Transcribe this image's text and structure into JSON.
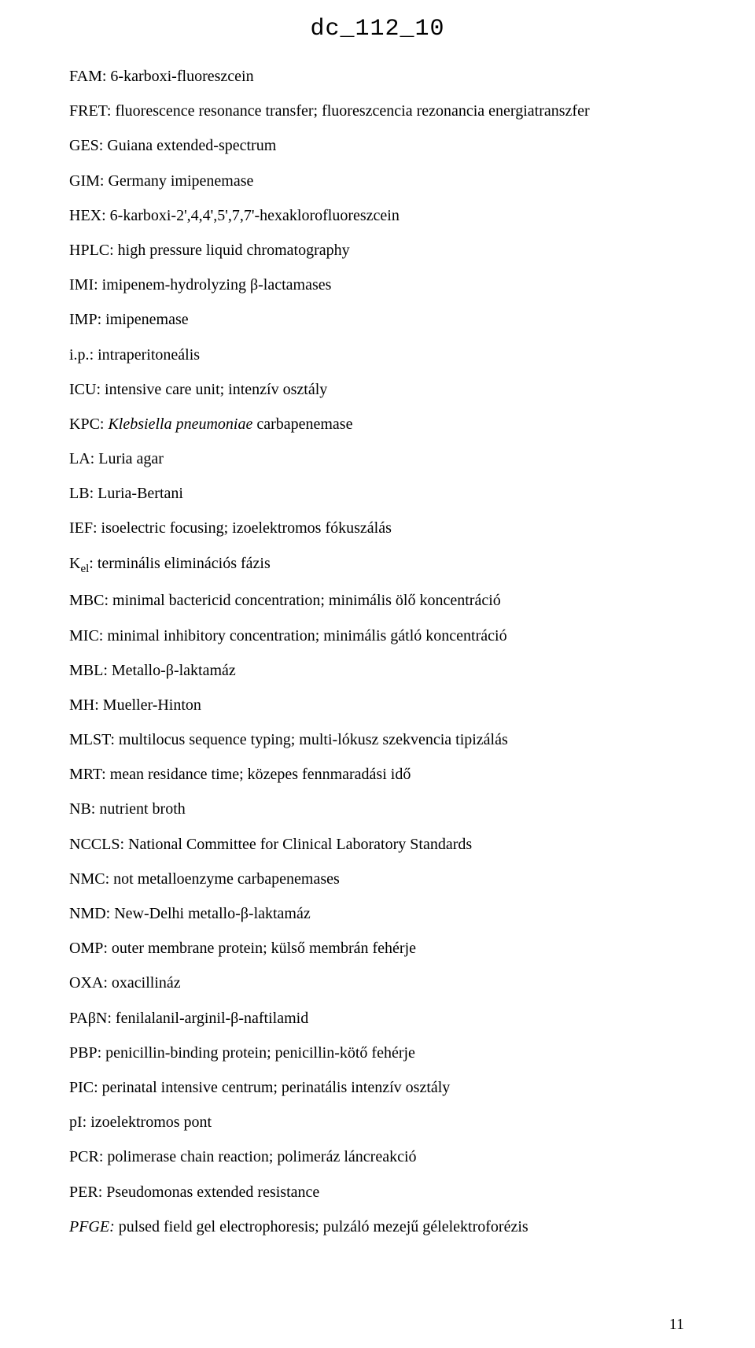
{
  "header": "dc_112_10",
  "page_number": "11",
  "entries": [
    {
      "abbr": "FAM",
      "def": ": 6-karboxi-fluoreszcein"
    },
    {
      "abbr": "FRET",
      "def": ": fluorescence resonance transfer; fluoreszcencia rezonancia energiatranszfer"
    },
    {
      "abbr": "GES",
      "def": ": Guiana extended-spectrum"
    },
    {
      "abbr": "GIM",
      "def": ": Germany imipenemase"
    },
    {
      "abbr": "HEX",
      "def": ": 6-karboxi-2',4,4',5',7,7'-hexaklorofluoreszcein"
    },
    {
      "abbr": "HPLC",
      "def": ": high pressure liquid chromatography"
    },
    {
      "abbr": "IMI",
      "def": ": imipenem-hydrolyzing β-lactamases"
    },
    {
      "abbr": "IMP",
      "def": ": imipenemase"
    },
    {
      "abbr": "i.p.",
      "def": ": intraperitoneális"
    },
    {
      "abbr": "ICU",
      "def": ": intensive care unit; intenzív osztály"
    },
    {
      "abbr": "KPC",
      "pre": ": ",
      "italic": "Klebsiella pneumoniae",
      "post": " carbapenemase"
    },
    {
      "abbr": "LA",
      "def": ": Luria agar"
    },
    {
      "abbr": "LB",
      "def": ": Luria-Bertani"
    },
    {
      "abbr": "IEF",
      "def": ": isoelectric focusing; izoelektromos fókuszálás"
    },
    {
      "abbr_pre": "K",
      "abbr_sub": "el",
      "def": ": terminális eliminációs fázis"
    },
    {
      "abbr": "MBC",
      "def": ": minimal bactericid concentration; minimális ölő koncentráció"
    },
    {
      "abbr": "MIC",
      "def": ": minimal inhibitory concentration; minimális gátló koncentráció"
    },
    {
      "abbr": "MBL",
      "def": ": Metallo-β-laktamáz"
    },
    {
      "abbr": "MH",
      "def": ": Mueller-Hinton"
    },
    {
      "abbr": "MLST",
      "def": ": multilocus sequence typing; multi-lókusz szekvencia tipizálás"
    },
    {
      "abbr": "MRT",
      "def": ": mean residance time; közepes fennmaradási idő"
    },
    {
      "abbr": "NB",
      "def": ": nutrient broth"
    },
    {
      "abbr": "NCCLS",
      "def": ": National Committee for Clinical Laboratory Standards"
    },
    {
      "abbr": "NMC",
      "def": ": not metalloenzyme carbapenemases"
    },
    {
      "abbr": "NMD",
      "def": ": New-Delhi metallo-β-laktamáz"
    },
    {
      "abbr": "OMP",
      "def": ": outer membrane protein; külső membrán fehérje"
    },
    {
      "abbr": "OXA",
      "def": ": oxacillináz"
    },
    {
      "abbr": "PAβN",
      "def": ": fenilalanil-arginil-β-naftilamid"
    },
    {
      "abbr": "PBP",
      "def": ": penicillin-binding protein; penicillin-kötő fehérje"
    },
    {
      "abbr": "PIC",
      "def": ": perinatal intensive centrum; perinatális intenzív osztály"
    },
    {
      "abbr": "pI",
      "def": ": izoelektromos pont"
    },
    {
      "abbr": "PCR",
      "def": ": polimerase chain reaction; polimeráz láncreakció"
    },
    {
      "abbr": "PER",
      "def": ": Pseudomonas extended resistance"
    },
    {
      "abbr_italic": "PFGE:",
      "def": " pulsed field gel electrophoresis; pulzáló mezejű gélelektroforézis"
    }
  ]
}
